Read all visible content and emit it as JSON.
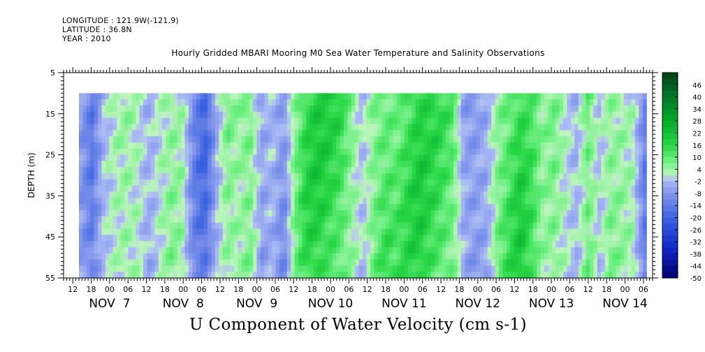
{
  "header": {
    "longitude": "LONGITUDE : 121.9W(-121.9)",
    "latitude": "LATITUDE : 36.8N",
    "year": "YEAR : 2010"
  },
  "plot_title": "Hourly Gridded MBARI Mooring M0 Sea Water Temperature and Salinity Observations",
  "bottom_title": "U Component of Water Velocity (cm s-1)",
  "chart_data": {
    "type": "heatmap",
    "title": "Hourly Gridded MBARI Mooring M0 Sea Water Temperature and Salinity Observations",
    "variable": "U Component of Water Velocity (cm s-1)",
    "ylabel": "DEPTH (m)",
    "ylim": [
      55,
      5
    ],
    "y_reversed": true,
    "y_ticks": [
      5,
      15,
      25,
      35,
      45,
      55
    ],
    "data_depth_range": [
      10,
      55
    ],
    "x_start_hour": "2010-11-06 09:00",
    "x_end_hour": "2010-11-14 09:00",
    "data_start_hour": "2010-11-06 14:00",
    "data_end_hour": "2010-11-14 07:00",
    "x_hour_ticks": [
      "12",
      "18",
      "00",
      "06",
      "12",
      "18",
      "00",
      "06",
      "12",
      "18",
      "00",
      "06",
      "12",
      "18",
      "00",
      "06",
      "12",
      "18",
      "00",
      "06",
      "12",
      "18",
      "00",
      "06",
      "12",
      "18",
      "00",
      "06",
      "12",
      "18",
      "00",
      "06"
    ],
    "x_day_labels": [
      "NOV  7",
      "NOV  8",
      "NOV  9",
      "NOV 10",
      "NOV 11",
      "NOV 12",
      "NOV 13",
      "NOV 14"
    ],
    "colorbar_labels": [
      "46",
      "40",
      "34",
      "28",
      "22",
      "16",
      "10",
      "4",
      "-2",
      "-8",
      "-14",
      "-20",
      "-26",
      "-32",
      "-38",
      "-44",
      "-50"
    ],
    "colorbar_range": [
      -50,
      52
    ],
    "column_mean_u": [
      -6,
      -12,
      -2,
      2,
      4,
      2,
      -4,
      1,
      5,
      3,
      -10,
      -16,
      -4,
      6,
      4,
      8,
      -6,
      -3,
      -9,
      6,
      14,
      16,
      15,
      13,
      6,
      -2,
      8,
      12,
      10,
      13,
      16,
      14,
      12,
      9,
      -6,
      -8,
      -5,
      7,
      12,
      16,
      11,
      4,
      6,
      1,
      -3,
      9,
      -1,
      6,
      4,
      2,
      -11
    ],
    "note": "column_mean_u: approximate depth-mean U (cm/s) at 51 evenly spaced times from data start to data end; cells vary with depth around these values",
    "colors": {
      "negative_strong": "#1a3ad0",
      "negative_weak": "#a8b8f0",
      "positive_weak": "#b0f0b0",
      "positive_strong": "#00b030"
    }
  }
}
